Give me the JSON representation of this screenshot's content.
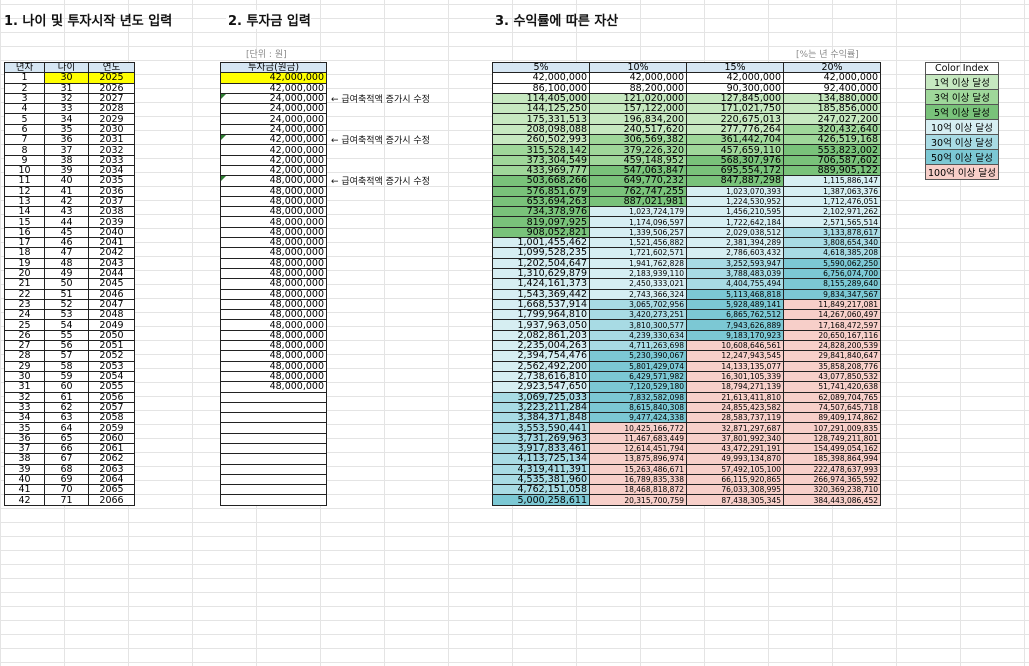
{
  "titles": {
    "section1": "1. 나이 및 투자시작 년도 입력",
    "section2": "2. 투자금 입력",
    "section3": "3. 수익률에 따른 자산"
  },
  "notes": {
    "unit": "[단위 : 원]",
    "rate": "[%는 년 수익률]"
  },
  "table1": {
    "headers": [
      "년차",
      "나이",
      "연도"
    ],
    "rows": [
      [
        "1",
        "30",
        "2025"
      ],
      [
        "2",
        "31",
        "2026"
      ],
      [
        "3",
        "32",
        "2027"
      ],
      [
        "4",
        "33",
        "2028"
      ],
      [
        "5",
        "34",
        "2029"
      ],
      [
        "6",
        "35",
        "2030"
      ],
      [
        "7",
        "36",
        "2031"
      ],
      [
        "8",
        "37",
        "2032"
      ],
      [
        "9",
        "38",
        "2033"
      ],
      [
        "10",
        "39",
        "2034"
      ],
      [
        "11",
        "40",
        "2035"
      ],
      [
        "12",
        "41",
        "2036"
      ],
      [
        "13",
        "42",
        "2037"
      ],
      [
        "14",
        "43",
        "2038"
      ],
      [
        "15",
        "44",
        "2039"
      ],
      [
        "16",
        "45",
        "2040"
      ],
      [
        "17",
        "46",
        "2041"
      ],
      [
        "18",
        "47",
        "2042"
      ],
      [
        "19",
        "48",
        "2043"
      ],
      [
        "20",
        "49",
        "2044"
      ],
      [
        "21",
        "50",
        "2045"
      ],
      [
        "22",
        "51",
        "2046"
      ],
      [
        "23",
        "52",
        "2047"
      ],
      [
        "24",
        "53",
        "2048"
      ],
      [
        "25",
        "54",
        "2049"
      ],
      [
        "26",
        "55",
        "2050"
      ],
      [
        "27",
        "56",
        "2051"
      ],
      [
        "28",
        "57",
        "2052"
      ],
      [
        "29",
        "58",
        "2053"
      ],
      [
        "30",
        "59",
        "2054"
      ],
      [
        "31",
        "60",
        "2055"
      ],
      [
        "32",
        "61",
        "2056"
      ],
      [
        "33",
        "62",
        "2057"
      ],
      [
        "34",
        "63",
        "2058"
      ],
      [
        "35",
        "64",
        "2059"
      ],
      [
        "36",
        "65",
        "2060"
      ],
      [
        "37",
        "66",
        "2061"
      ],
      [
        "38",
        "67",
        "2062"
      ],
      [
        "39",
        "68",
        "2063"
      ],
      [
        "40",
        "69",
        "2064"
      ],
      [
        "41",
        "70",
        "2065"
      ],
      [
        "42",
        "71",
        "2066"
      ]
    ]
  },
  "table2": {
    "header": "투자금(원금)",
    "values": [
      "42,000,000",
      "42,000,000",
      "24,000,000",
      "24,000,000",
      "24,000,000",
      "24,000,000",
      "42,000,000",
      "42,000,000",
      "42,000,000",
      "42,000,000",
      "48,000,000",
      "48,000,000",
      "48,000,000",
      "48,000,000",
      "48,000,000",
      "48,000,000",
      "48,000,000",
      "48,000,000",
      "48,000,000",
      "48,000,000",
      "48,000,000",
      "48,000,000",
      "48,000,000",
      "48,000,000",
      "48,000,000",
      "48,000,000",
      "48,000,000",
      "48,000,000",
      "48,000,000",
      "48,000,000",
      "48,000,000",
      "",
      "",
      "",
      "",
      "",
      "",
      "",
      "",
      "",
      "",
      ""
    ],
    "comments": [
      {
        "row": 2,
        "text": "← 급여축적액 증가시 수정"
      },
      {
        "row": 6,
        "text": "← 급여축적액 증가시 수정"
      },
      {
        "row": 10,
        "text": "← 급여축적액 증가시 수정"
      }
    ]
  },
  "table3": {
    "headers": [
      "5%",
      "10%",
      "15%",
      "20%"
    ],
    "rows": [
      [
        "42,000,000",
        "42,000,000",
        "42,000,000",
        "42,000,000"
      ],
      [
        "86,100,000",
        "88,200,000",
        "90,300,000",
        "92,400,000"
      ],
      [
        "114,405,000",
        "121,020,000",
        "127,845,000",
        "134,880,000"
      ],
      [
        "144,125,250",
        "157,122,000",
        "171,021,750",
        "185,856,000"
      ],
      [
        "175,331,513",
        "196,834,200",
        "220,675,013",
        "247,027,200"
      ],
      [
        "208,098,088",
        "240,517,620",
        "277,776,264",
        "320,432,640"
      ],
      [
        "260,502,993",
        "306,569,382",
        "361,442,704",
        "426,519,168"
      ],
      [
        "315,528,142",
        "379,226,320",
        "457,659,110",
        "553,823,002"
      ],
      [
        "373,304,549",
        "459,148,952",
        "568,307,976",
        "706,587,602"
      ],
      [
        "433,969,777",
        "547,063,847",
        "695,554,172",
        "889,905,122"
      ],
      [
        "503,668,266",
        "649,770,232",
        "847,887,298",
        "1,115,886,147"
      ],
      [
        "576,851,679",
        "762,747,255",
        "1,023,070,393",
        "1,387,063,376"
      ],
      [
        "653,694,263",
        "887,021,981",
        "1,224,530,952",
        "1,712,476,051"
      ],
      [
        "734,378,976",
        "1,023,724,179",
        "1,456,210,595",
        "2,102,971,262"
      ],
      [
        "819,097,925",
        "1,174,096,597",
        "1,722,642,184",
        "2,571,565,514"
      ],
      [
        "908,052,821",
        "1,339,506,257",
        "2,029,038,512",
        "3,133,878,617"
      ],
      [
        "1,001,455,462",
        "1,521,456,882",
        "2,381,394,289",
        "3,808,654,340"
      ],
      [
        "1,099,528,235",
        "1,721,602,571",
        "2,786,603,432",
        "4,618,385,208"
      ],
      [
        "1,202,504,647",
        "1,941,762,828",
        "3,252,593,947",
        "5,590,062,250"
      ],
      [
        "1,310,629,879",
        "2,183,939,110",
        "3,788,483,039",
        "6,756,074,700"
      ],
      [
        "1,424,161,373",
        "2,450,333,021",
        "4,404,755,494",
        "8,155,289,640"
      ],
      [
        "1,543,369,442",
        "2,743,366,324",
        "5,113,468,818",
        "9,834,347,567"
      ],
      [
        "1,668,537,914",
        "3,065,702,956",
        "5,928,489,141",
        "11,849,217,081"
      ],
      [
        "1,799,964,810",
        "3,420,273,251",
        "6,865,762,512",
        "14,267,060,497"
      ],
      [
        "1,937,963,050",
        "3,810,300,577",
        "7,943,626,889",
        "17,168,472,597"
      ],
      [
        "2,082,861,203",
        "4,239,330,634",
        "9,183,170,923",
        "20,650,167,116"
      ],
      [
        "2,235,004,263",
        "4,711,263,698",
        "10,608,646,561",
        "24,828,200,539"
      ],
      [
        "2,394,754,476",
        "5,230,390,067",
        "12,247,943,545",
        "29,841,840,647"
      ],
      [
        "2,562,492,200",
        "5,801,429,074",
        "14,133,135,077",
        "35,858,208,776"
      ],
      [
        "2,738,616,810",
        "6,429,571,982",
        "16,301,105,339",
        "43,077,850,532"
      ],
      [
        "2,923,547,650",
        "7,120,529,180",
        "18,794,271,139",
        "51,741,420,638"
      ],
      [
        "3,069,725,033",
        "7,832,582,098",
        "21,613,411,810",
        "62,089,704,765"
      ],
      [
        "3,223,211,284",
        "8,615,840,308",
        "24,855,423,582",
        "74,507,645,718"
      ],
      [
        "3,384,371,848",
        "9,477,424,338",
        "28,583,737,119",
        "89,409,174,862"
      ],
      [
        "3,553,590,441",
        "10,425,166,772",
        "32,871,297,687",
        "107,291,009,835"
      ],
      [
        "3,731,269,963",
        "11,467,683,449",
        "37,801,992,340",
        "128,749,211,801"
      ],
      [
        "3,917,833,461",
        "12,614,451,794",
        "43,472,291,191",
        "154,499,054,162"
      ],
      [
        "4,113,725,134",
        "13,875,896,974",
        "49,993,134,870",
        "185,398,864,994"
      ],
      [
        "4,319,411,391",
        "15,263,486,671",
        "57,492,105,100",
        "222,478,637,993"
      ],
      [
        "4,535,381,960",
        "16,789,835,338",
        "66,115,920,865",
        "266,974,365,592"
      ],
      [
        "4,762,151,058",
        "18,468,818,872",
        "76,033,308,995",
        "320,369,238,710"
      ],
      [
        "5,000,258,611",
        "20,315,700,759",
        "87,438,305,345",
        "384,443,086,452"
      ]
    ]
  },
  "legend": {
    "title": "Color Index",
    "items": [
      {
        "label": "1억 이상 달성",
        "color": "#c6e8c0"
      },
      {
        "label": "3억 이상 달성",
        "color": "#9fd79a"
      },
      {
        "label": "5억 이상 달성",
        "color": "#79c27a"
      },
      {
        "label": "10억 이상 달성",
        "color": "#d6eef2"
      },
      {
        "label": "30억 이상 달성",
        "color": "#a8dbe4"
      },
      {
        "label": "50억 이상 달성",
        "color": "#7cc8d4"
      },
      {
        "label": "100억 이상 달성",
        "color": "#f7cfc9"
      }
    ]
  },
  "colors": {
    "header": "#d6e6f3",
    "highlight": "#ffff00",
    "comment_marker": "#2e7d32"
  }
}
